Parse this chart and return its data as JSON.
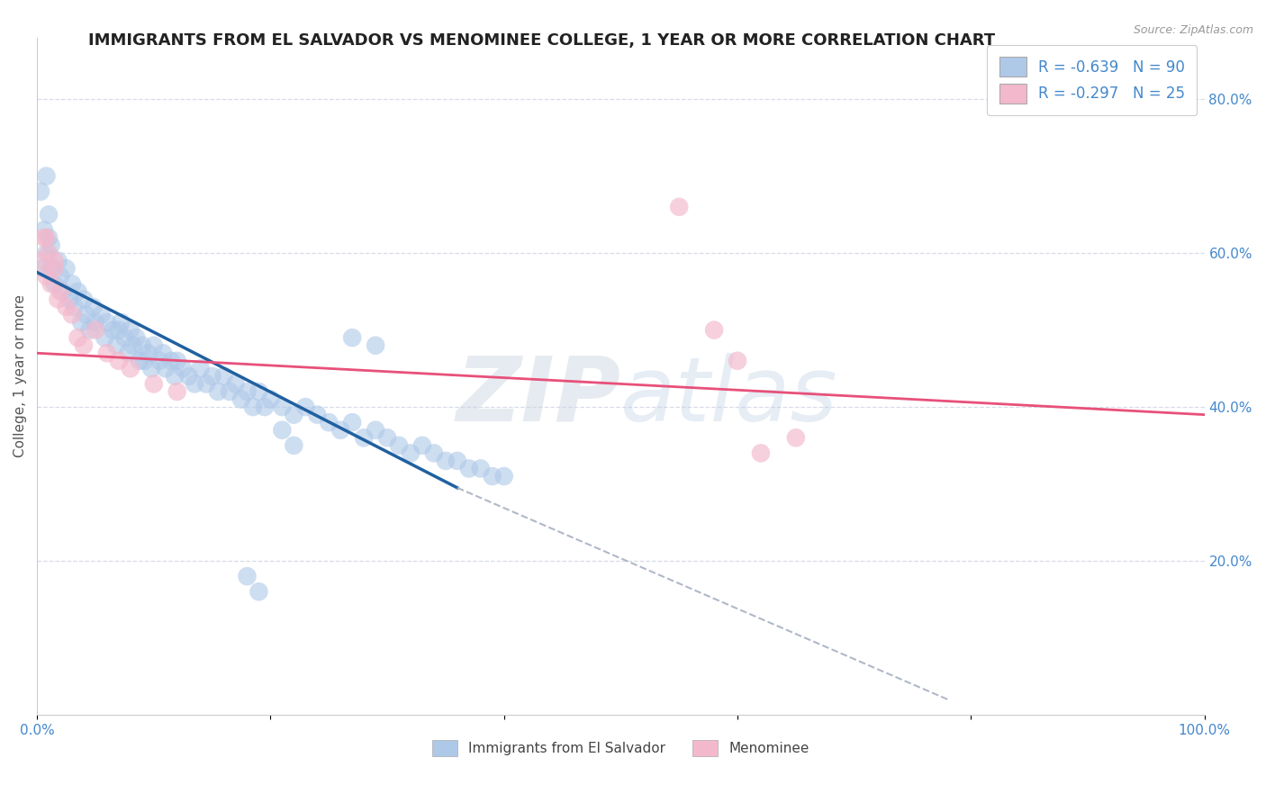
{
  "title": "IMMIGRANTS FROM EL SALVADOR VS MENOMINEE COLLEGE, 1 YEAR OR MORE CORRELATION CHART",
  "source": "Source: ZipAtlas.com",
  "ylabel": "College, 1 year or more",
  "legend_label_1": "Immigrants from El Salvador",
  "legend_label_2": "Menominee",
  "R1": -0.639,
  "N1": 90,
  "R2": -0.297,
  "N2": 25,
  "xlim": [
    0.0,
    1.0
  ],
  "ylim": [
    0.0,
    0.88
  ],
  "xticks": [
    0.0,
    0.2,
    0.4,
    0.6,
    0.8,
    1.0
  ],
  "xticklabels": [
    "0.0%",
    "",
    "",
    "",
    "",
    "100.0%"
  ],
  "yticks_right": [
    0.2,
    0.4,
    0.6,
    0.8
  ],
  "yticklabels_right": [
    "20.0%",
    "40.0%",
    "60.0%",
    "80.0%"
  ],
  "color_blue": "#aec8e8",
  "color_pink": "#f4b8cc",
  "color_blue_line": "#2060a0",
  "color_pink_line": "#e8507a",
  "color_dashed": "#b0b8c8",
  "watermark_zip": "ZIP",
  "watermark_atlas": "atlas",
  "background_color": "#ffffff",
  "grid_color": "#d8dce8",
  "blue_scatter_x": [
    0.003,
    0.006,
    0.008,
    0.01,
    0.012,
    0.005,
    0.008,
    0.01,
    0.012,
    0.015,
    0.018,
    0.02,
    0.022,
    0.025,
    0.028,
    0.03,
    0.032,
    0.035,
    0.038,
    0.04,
    0.042,
    0.045,
    0.048,
    0.05,
    0.055,
    0.058,
    0.06,
    0.065,
    0.068,
    0.07,
    0.072,
    0.075,
    0.078,
    0.08,
    0.082,
    0.085,
    0.088,
    0.09,
    0.092,
    0.095,
    0.098,
    0.1,
    0.105,
    0.108,
    0.11,
    0.115,
    0.118,
    0.12,
    0.125,
    0.13,
    0.135,
    0.14,
    0.145,
    0.15,
    0.155,
    0.16,
    0.165,
    0.17,
    0.175,
    0.18,
    0.185,
    0.19,
    0.195,
    0.2,
    0.21,
    0.22,
    0.23,
    0.24,
    0.25,
    0.26,
    0.27,
    0.28,
    0.29,
    0.3,
    0.31,
    0.32,
    0.33,
    0.34,
    0.35,
    0.36,
    0.37,
    0.38,
    0.39,
    0.4,
    0.27,
    0.29,
    0.21,
    0.22,
    0.18,
    0.19
  ],
  "blue_scatter_y": [
    0.68,
    0.63,
    0.7,
    0.65,
    0.61,
    0.58,
    0.6,
    0.62,
    0.58,
    0.56,
    0.59,
    0.57,
    0.55,
    0.58,
    0.54,
    0.56,
    0.53,
    0.55,
    0.51,
    0.54,
    0.52,
    0.5,
    0.53,
    0.51,
    0.52,
    0.49,
    0.51,
    0.5,
    0.48,
    0.5,
    0.51,
    0.49,
    0.47,
    0.5,
    0.48,
    0.49,
    0.46,
    0.48,
    0.46,
    0.47,
    0.45,
    0.48,
    0.46,
    0.47,
    0.45,
    0.46,
    0.44,
    0.46,
    0.45,
    0.44,
    0.43,
    0.45,
    0.43,
    0.44,
    0.42,
    0.44,
    0.42,
    0.43,
    0.41,
    0.42,
    0.4,
    0.42,
    0.4,
    0.41,
    0.4,
    0.39,
    0.4,
    0.39,
    0.38,
    0.37,
    0.38,
    0.36,
    0.37,
    0.36,
    0.35,
    0.34,
    0.35,
    0.34,
    0.33,
    0.33,
    0.32,
    0.32,
    0.31,
    0.31,
    0.49,
    0.48,
    0.37,
    0.35,
    0.18,
    0.16
  ],
  "pink_scatter_x": [
    0.003,
    0.006,
    0.008,
    0.01,
    0.012,
    0.015,
    0.018,
    0.02,
    0.025,
    0.03,
    0.035,
    0.04,
    0.05,
    0.06,
    0.07,
    0.08,
    0.1,
    0.12,
    0.008,
    0.015,
    0.55,
    0.58,
    0.6,
    0.62,
    0.65
  ],
  "pink_scatter_y": [
    0.59,
    0.62,
    0.57,
    0.6,
    0.56,
    0.58,
    0.54,
    0.55,
    0.53,
    0.52,
    0.49,
    0.48,
    0.5,
    0.47,
    0.46,
    0.45,
    0.43,
    0.42,
    0.62,
    0.59,
    0.66,
    0.5,
    0.46,
    0.34,
    0.36
  ],
  "blue_line_x0": 0.0,
  "blue_line_y0": 0.575,
  "blue_line_x1": 0.36,
  "blue_line_y1": 0.295,
  "pink_line_x0": 0.0,
  "pink_line_y0": 0.47,
  "pink_line_x1": 1.0,
  "pink_line_y1": 0.39,
  "dashed_line_x0": 0.36,
  "dashed_line_y0": 0.295,
  "dashed_line_x1": 0.78,
  "dashed_line_y1": 0.02
}
